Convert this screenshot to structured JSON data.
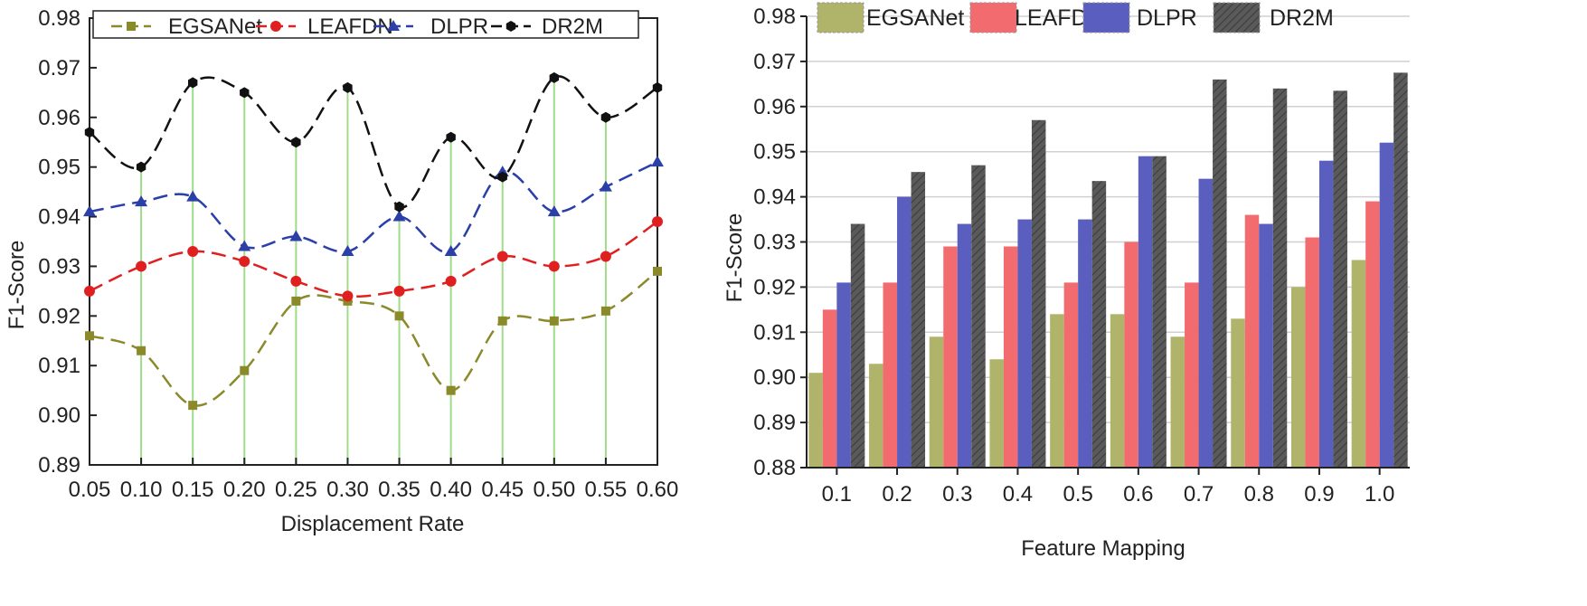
{
  "colors": {
    "egsanet_line": "#8a8a2a",
    "leafdn_line": "#e02020",
    "dlpr_line": "#2a3fa8",
    "dr2m_line": "#111111",
    "egsanet_bar": "#b0b46a",
    "leafdn_bar": "#f26b6e",
    "dlpr_bar": "#5a5fbf",
    "dr2m_bar": "#5a5a5a",
    "drop_line": "#9fdc8a"
  },
  "chart_data": [
    {
      "type": "line",
      "title": "",
      "xlabel": "Displacement Rate",
      "ylabel": "F1-Score",
      "xlim": [
        0.05,
        0.6
      ],
      "ylim": [
        0.89,
        0.98
      ],
      "x": [
        0.05,
        0.1,
        0.15,
        0.2,
        0.25,
        0.3,
        0.35,
        0.4,
        0.45,
        0.5,
        0.55,
        0.6
      ],
      "x_tick_labels": [
        "0.05",
        "0.10",
        "0.15",
        "0.20",
        "0.25",
        "0.30",
        "0.35",
        "0.40",
        "0.45",
        "0.50",
        "0.55",
        "0.60"
      ],
      "y_tick_labels": [
        "0.89",
        "0.90",
        "0.91",
        "0.92",
        "0.93",
        "0.94",
        "0.95",
        "0.96",
        "0.97",
        "0.98"
      ],
      "legend_position": "top",
      "series": [
        {
          "name": "EGSANet",
          "marker": "square",
          "values": [
            0.916,
            0.913,
            0.902,
            0.909,
            0.923,
            0.923,
            0.92,
            0.905,
            0.919,
            0.919,
            0.921,
            0.929
          ]
        },
        {
          "name": "LEAFDN",
          "marker": "circle",
          "values": [
            0.925,
            0.93,
            0.933,
            0.931,
            0.927,
            0.924,
            0.925,
            0.927,
            0.932,
            0.93,
            0.932,
            0.939
          ]
        },
        {
          "name": "DLPR",
          "marker": "triangle",
          "values": [
            0.941,
            0.943,
            0.944,
            0.934,
            0.936,
            0.933,
            0.94,
            0.933,
            0.949,
            0.941,
            0.946,
            0.951
          ]
        },
        {
          "name": "DR2M",
          "marker": "hexagon",
          "values": [
            0.957,
            0.95,
            0.967,
            0.965,
            0.955,
            0.966,
            0.942,
            0.956,
            0.948,
            0.968,
            0.96,
            0.966
          ]
        }
      ]
    },
    {
      "type": "bar",
      "title": "",
      "xlabel": "Feature Mapping",
      "ylabel": "F1-Score",
      "ylim": [
        0.88,
        0.98
      ],
      "categories": [
        "0.1",
        "0.2",
        "0.3",
        "0.4",
        "0.5",
        "0.6",
        "0.7",
        "0.8",
        "0.9",
        "1.0"
      ],
      "y_tick_labels": [
        "0.88",
        "0.89",
        "0.90",
        "0.91",
        "0.92",
        "0.93",
        "0.94",
        "0.95",
        "0.96",
        "0.97",
        "0.98"
      ],
      "legend_position": "top",
      "series": [
        {
          "name": "EGSANet",
          "values": [
            0.901,
            0.903,
            0.909,
            0.904,
            0.914,
            0.914,
            0.909,
            0.913,
            0.92,
            0.926
          ]
        },
        {
          "name": "LEAFDN",
          "values": [
            0.915,
            0.921,
            0.929,
            0.929,
            0.921,
            0.93,
            0.921,
            0.936,
            0.931,
            0.939
          ]
        },
        {
          "name": "DLPR",
          "values": [
            0.921,
            0.94,
            0.934,
            0.935,
            0.935,
            0.949,
            0.944,
            0.934,
            0.948,
            0.952
          ]
        },
        {
          "name": "DR2M",
          "values": [
            0.934,
            0.9455,
            0.947,
            0.957,
            0.9435,
            0.949,
            0.966,
            0.964,
            0.9635,
            0.9675
          ]
        }
      ]
    }
  ]
}
